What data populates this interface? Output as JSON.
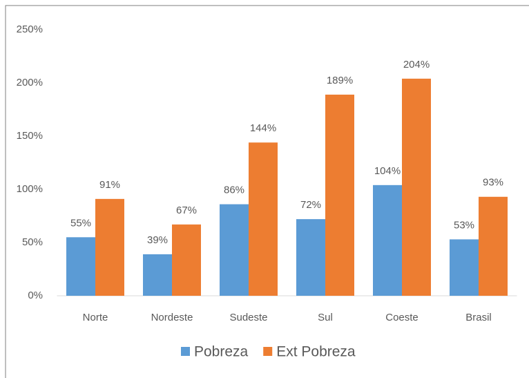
{
  "chart_data": {
    "type": "bar",
    "categories": [
      "Norte",
      "Nordeste",
      "Sudeste",
      "Sul",
      "Coeste",
      "Brasil"
    ],
    "series": [
      {
        "name": "Pobreza",
        "color": "#5b9bd5",
        "values": [
          55,
          39,
          86,
          72,
          104,
          53
        ],
        "value_labels": [
          "55%",
          "39%",
          "86%",
          "72%",
          "104%",
          "53%"
        ]
      },
      {
        "name": "Ext Pobreza",
        "color": "#ed7d31",
        "values": [
          91,
          67,
          144,
          189,
          204,
          93
        ],
        "value_labels": [
          "91%",
          "67%",
          "144%",
          "189%",
          "204%",
          "93%"
        ]
      }
    ],
    "ylim": [
      0,
      250
    ],
    "yticks": [
      {
        "value": 0,
        "label": "0%"
      },
      {
        "value": 50,
        "label": "50%"
      },
      {
        "value": 100,
        "label": "100%"
      },
      {
        "value": 150,
        "label": "150%"
      },
      {
        "value": 200,
        "label": "200%"
      },
      {
        "value": 250,
        "label": "250%"
      }
    ],
    "grid": false,
    "legend": "bottom"
  }
}
